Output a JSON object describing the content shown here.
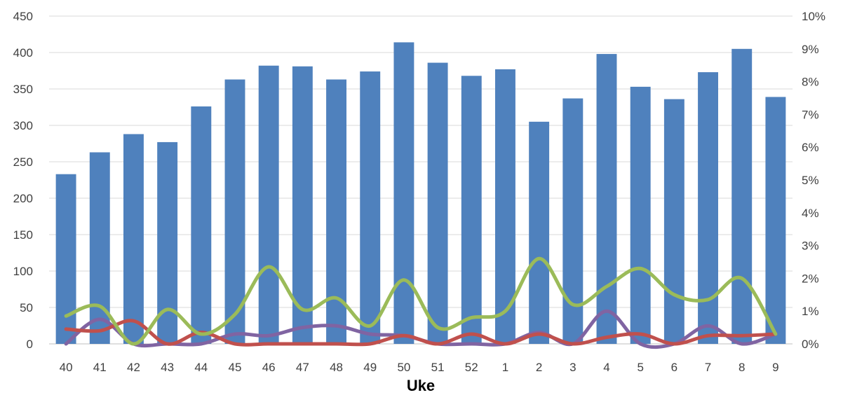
{
  "chart_data": {
    "type": "bar",
    "xlabel": "Uke",
    "categories": [
      "40",
      "41",
      "42",
      "43",
      "44",
      "45",
      "46",
      "47",
      "48",
      "49",
      "50",
      "51",
      "52",
      "1",
      "2",
      "3",
      "4",
      "5",
      "6",
      "7",
      "8",
      "9"
    ],
    "series": [
      {
        "type": "bar",
        "axis": "left",
        "color": "#4F81BD",
        "values": [
          233,
          263,
          288,
          277,
          326,
          363,
          382,
          381,
          363,
          374,
          414,
          386,
          368,
          377,
          305,
          337,
          398,
          353,
          336,
          373,
          405,
          339
        ]
      },
      {
        "type": "line",
        "axis": "right",
        "color": "#9BBB59",
        "values": [
          0.85,
          1.15,
          0.0,
          1.05,
          0.3,
          0.9,
          2.35,
          1.05,
          1.4,
          0.55,
          1.95,
          0.5,
          0.8,
          1.0,
          2.6,
          1.2,
          1.75,
          2.3,
          1.5,
          1.35,
          2.0,
          0.3
        ]
      },
      {
        "type": "line",
        "axis": "right",
        "color": "#C0504D",
        "values": [
          0.45,
          0.4,
          0.7,
          0.0,
          0.35,
          0.0,
          0.0,
          0.0,
          0.0,
          0.0,
          0.25,
          0.0,
          0.3,
          0.0,
          0.3,
          0.0,
          0.2,
          0.3,
          0.0,
          0.25,
          0.25,
          0.3
        ]
      },
      {
        "type": "line",
        "axis": "right",
        "color": "#8064A2",
        "values": [
          0.0,
          0.75,
          0.0,
          0.0,
          0.0,
          0.3,
          0.25,
          0.5,
          0.55,
          0.3,
          0.25,
          0.0,
          0.0,
          0.0,
          0.35,
          0.0,
          1.0,
          0.0,
          0.0,
          0.55,
          0.0,
          0.3
        ]
      }
    ],
    "y_left": {
      "min": 0,
      "max": 450,
      "step": 50,
      "ticks": [
        "0",
        "50",
        "100",
        "150",
        "200",
        "250",
        "300",
        "350",
        "400",
        "450"
      ]
    },
    "y_right": {
      "min": 0,
      "max": 10,
      "step": 1,
      "ticks": [
        "0%",
        "1%",
        "2%",
        "3%",
        "4%",
        "5%",
        "6%",
        "7%",
        "8%",
        "9%",
        "10%"
      ]
    },
    "grid": true,
    "legend": "none"
  }
}
